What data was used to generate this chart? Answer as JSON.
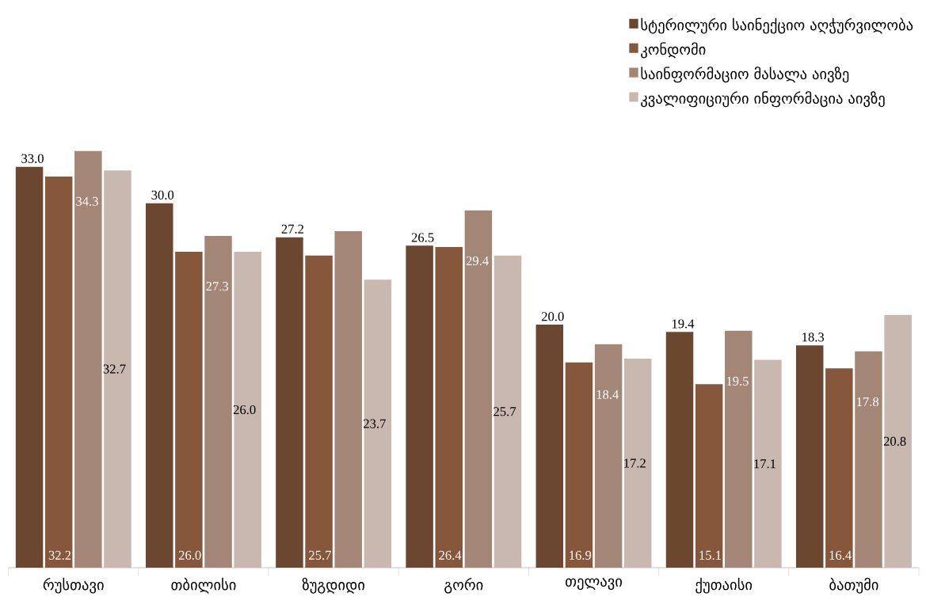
{
  "chart_data": {
    "type": "bar",
    "categories": [
      "რუსთავი",
      "თბილისი",
      "ზუგდიდი",
      "გორი",
      "თელავი",
      "ქუთაისი",
      "ბათუმი"
    ],
    "series": [
      {
        "name": "სტერილური საინექციო აღჭურვილობა",
        "color": "#6b4730",
        "values": [
          33.0,
          30.0,
          27.2,
          26.5,
          20.0,
          19.4,
          18.3
        ],
        "value_labels": [
          "33.0",
          "30.0",
          "27.2",
          "26.5",
          "20.0",
          "19.4",
          "18.3"
        ]
      },
      {
        "name": "კონდომი",
        "color": "#86573a",
        "values": [
          32.2,
          26.0,
          25.7,
          26.4,
          16.9,
          15.1,
          16.4
        ],
        "value_labels": [
          "32.2",
          "26.0",
          "25.7",
          "26.4",
          "16.9",
          "15.1",
          "16.4"
        ]
      },
      {
        "name": "საინფორმაციო მასალა აივზე",
        "color": "#a48676",
        "values": [
          34.3,
          27.3,
          27.7,
          29.4,
          18.4,
          19.5,
          17.8
        ],
        "value_labels": [
          "34.3",
          "27.3",
          null,
          "29.4",
          "18.4",
          "19.5",
          "17.8"
        ]
      },
      {
        "name": "კვალიფიციური ინფორმაცია აივზე",
        "color": "#c9b8b0",
        "values": [
          32.7,
          26.0,
          23.7,
          25.7,
          17.2,
          17.1,
          20.8
        ],
        "value_labels": [
          "32.7",
          "26.0",
          "23.7",
          "25.7",
          "17.2",
          "17.1",
          "20.8"
        ]
      }
    ],
    "legend": "top right"
  }
}
